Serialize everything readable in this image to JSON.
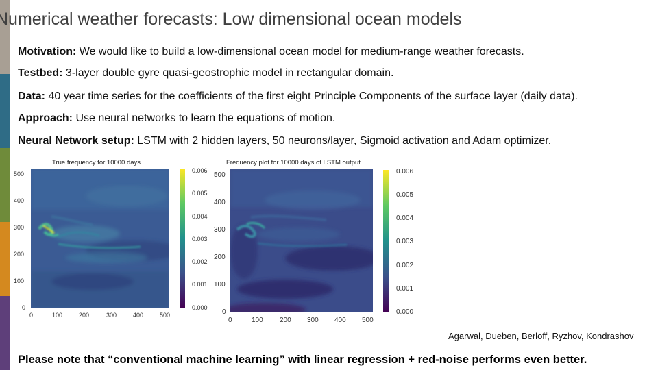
{
  "slide": {
    "title": "Numerical weather forecasts: Low dimensional ocean models",
    "stripe_colors": [
      "#a89f94",
      "#2f6c86",
      "#6f8b3a",
      "#d4891f",
      "#5e3f7a"
    ],
    "bullets": [
      {
        "label": "Motivation:",
        "text": " We would like to build a low-dimensional ocean model for medium-range weather forecasts."
      },
      {
        "label": "Testbed:",
        "text": " 3-layer double gyre quasi-geostrophic model in rectangular domain."
      },
      {
        "label": "Data:",
        "text": " 40 year time series for the coefficients of the first eight Principle Components of the surface layer (daily data)."
      },
      {
        "label": "Approach:",
        "text": " Use neural networks to learn the equations of motion."
      },
      {
        "label": "Neural Network setup:",
        "text": " LSTM with 2 hidden layers, 50 neurons/layer, Sigmoid activation and Adam optimizer."
      }
    ],
    "credit": "Agarwal, Dueben, Berloff, Ryzhov, Kondrashov",
    "note": "Please note that “conventional machine learning” with linear regression + red-noise performs even better."
  },
  "chart_data": [
    {
      "type": "heatmap",
      "title": "True frequency for 10000 days",
      "xlabel": "",
      "ylabel": "",
      "xticks": [
        "0",
        "100",
        "200",
        "300",
        "400",
        "500"
      ],
      "yticks": [
        "0",
        "100",
        "200",
        "300",
        "400",
        "500"
      ],
      "xlim": [
        0,
        512
      ],
      "ylim": [
        0,
        512
      ],
      "colorbar": {
        "min": 0.0,
        "max": 0.006,
        "ticks": [
          "0.006",
          "0.005",
          "0.004",
          "0.003",
          "0.002",
          "0.001",
          "0.000"
        ]
      },
      "colormap": "viridis"
    },
    {
      "type": "heatmap",
      "title": "Frequency plot for 10000 days of LSTM output",
      "xlabel": "",
      "ylabel": "",
      "xticks": [
        "0",
        "100",
        "200",
        "300",
        "400",
        "500"
      ],
      "yticks": [
        "0",
        "100",
        "200",
        "300",
        "400",
        "500"
      ],
      "xlim": [
        0,
        512
      ],
      "ylim": [
        0,
        512
      ],
      "colorbar": {
        "min": 0.0,
        "max": 0.006,
        "ticks": [
          "0.006",
          "0.005",
          "0.004",
          "0.003",
          "0.002",
          "0.001",
          "0.000"
        ]
      },
      "colormap": "viridis"
    }
  ]
}
